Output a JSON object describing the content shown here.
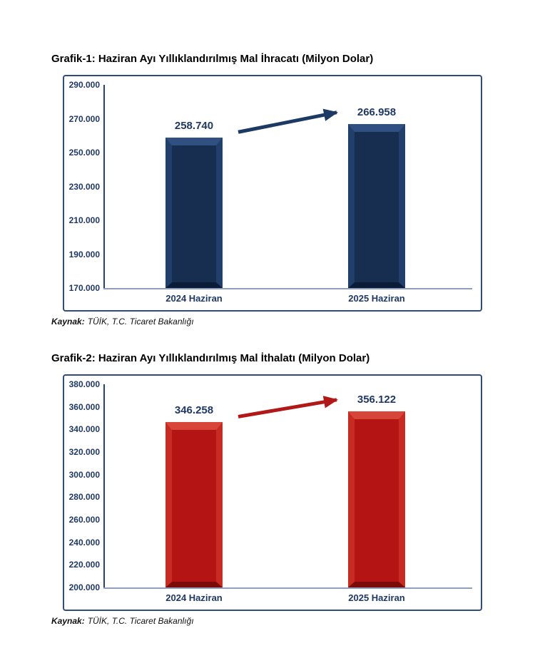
{
  "chart_data": [
    {
      "type": "bar",
      "title": "Grafik-1: Haziran Ayı Yıllıklandırılmış Mal İhracatı (Milyon Dolar)",
      "categories": [
        "2024 Haziran",
        "2025 Haziran"
      ],
      "values": [
        258740,
        266958
      ],
      "data_labels": [
        "258.740",
        "266.958"
      ],
      "ylim": [
        170000,
        290000
      ],
      "ytick_step": 20000,
      "ytick_labels": [
        "290.000",
        "270.000",
        "250.000",
        "230.000",
        "210.000",
        "190.000",
        "170.000"
      ],
      "grid": false,
      "legend": false,
      "annotation": "increase-arrow-between-bars",
      "colors": {
        "bar_face": "#172e50",
        "bar_bevel_top": "#2f5080",
        "bar_bevel_side": "#20406b",
        "bar_bevel_bottom": "#0b1c38",
        "arrow": "#1c3a63",
        "labels": "#1f3864",
        "axis_line": "#24426e",
        "baseline": "#8fa0ba",
        "frame_border": "#2e4d7b"
      },
      "source": {
        "label": "Kaynak:",
        "text": "TÜİK, T.C. Ticaret Bakanlığı"
      }
    },
    {
      "type": "bar",
      "title": "Grafik-2: Haziran Ayı Yıllıklandırılmış Mal İthalatı (Milyon Dolar)",
      "categories": [
        "2024 Haziran",
        "2025 Haziran"
      ],
      "values": [
        346258,
        356122
      ],
      "data_labels": [
        "346.258",
        "356.122"
      ],
      "ylim": [
        200000,
        380000
      ],
      "ytick_step": 20000,
      "ytick_labels": [
        "380.000",
        "360.000",
        "340.000",
        "320.000",
        "300.000",
        "280.000",
        "260.000",
        "240.000",
        "220.000",
        "200.000"
      ],
      "grid": false,
      "legend": false,
      "annotation": "increase-arrow-between-bars",
      "colors": {
        "bar_face": "#b41414",
        "bar_bevel_top": "#d8463a",
        "bar_bevel_side": "#c62c21",
        "bar_bevel_bottom": "#7d0a0a",
        "arrow": "#b11818",
        "labels": "#1f3864",
        "axis_line": "#24426e",
        "baseline": "#8fa0ba",
        "frame_border": "#2e4d7b"
      },
      "source": {
        "label": "Kaynak:",
        "text": "TÜİK, T.C. Ticaret Bakanlığı"
      }
    }
  ]
}
